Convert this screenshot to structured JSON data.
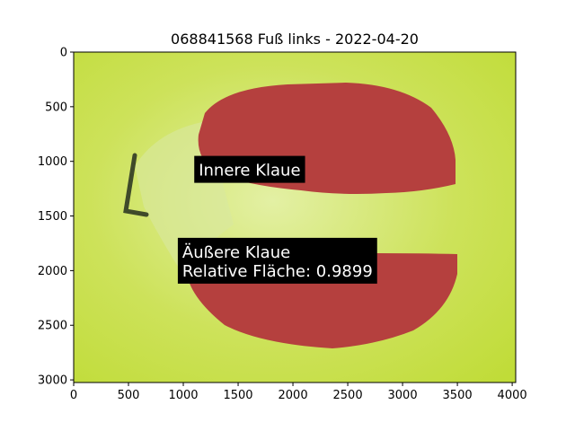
{
  "chart_data": {
    "type": "image",
    "title": "068841568 Fuß links - 2022-04-20",
    "xlim": [
      0,
      4032
    ],
    "ylim": [
      3024,
      0
    ],
    "x_ticks": [
      0,
      500,
      1000,
      1500,
      2000,
      2500,
      3000,
      3500,
      4000
    ],
    "y_ticks": [
      0,
      500,
      1000,
      1500,
      2000,
      2500,
      3000
    ],
    "grid": false,
    "regions": [
      {
        "label": "Innere Klaue"
      },
      {
        "label": "Äußere Klaue"
      }
    ],
    "annotations": [
      {
        "lines": [
          "Innere Klaue"
        ],
        "x": 1100,
        "y": 950
      },
      {
        "lines": [
          "Äußere Klaue",
          "Relative Fläche: 0.9899"
        ],
        "x": 950,
        "y": 1700
      }
    ],
    "colors": {
      "background": "#c6e04a",
      "region": "#b5403e",
      "annotation_box": "#000000"
    }
  }
}
